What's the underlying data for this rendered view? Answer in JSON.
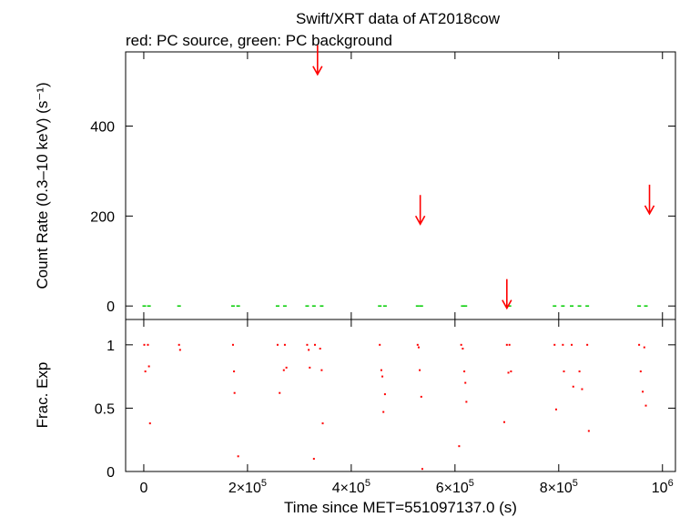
{
  "chart_data": [
    {
      "type": "scatter",
      "title": "Swift/XRT data of AT2018cow",
      "subtitle": "red: PC source, green: PC background",
      "ylabel": "Count Rate (0.3–10 keV) (s⁻¹)",
      "xlim": [
        -35000,
        1025000
      ],
      "ylim": [
        -30,
        565
      ],
      "yticks": [
        0,
        200,
        400
      ],
      "ytick_labels": [
        "0",
        "200",
        "400"
      ],
      "colors": {
        "source": "#ff0000",
        "background": "#00cc00"
      },
      "series": [
        {
          "name": "PC source",
          "kind": "upper-limits",
          "x": [
            335000,
            533000,
            700000,
            975000
          ],
          "y": [
            515,
            182,
            -5,
            205
          ]
        },
        {
          "name": "PC background",
          "x": [
            1000,
            10000,
            68000,
            172000,
            182000,
            258000,
            272000,
            315000,
            328000,
            343000,
            455000,
            465000,
            528000,
            535000,
            615000,
            620000,
            700000,
            705000,
            792000,
            808000,
            825000,
            840000,
            855000,
            955000,
            968000
          ],
          "y": [
            0,
            0,
            0,
            0,
            0,
            0,
            0,
            0,
            0,
            0,
            0,
            0,
            0,
            0,
            0,
            0,
            0,
            0,
            0,
            0,
            0,
            0,
            0,
            0,
            0
          ]
        }
      ]
    },
    {
      "type": "scatter",
      "xlabel": "Time since MET=551097137.0 (s)",
      "ylabel": "Frac. Exp",
      "xlim": [
        -35000,
        1025000
      ],
      "ylim": [
        0,
        1.2
      ],
      "xticks": [
        0,
        200000,
        400000,
        600000,
        800000,
        1000000
      ],
      "xtick_labels": [
        {
          "base": "0",
          "exp": ""
        },
        {
          "base": "2×10",
          "exp": "5"
        },
        {
          "base": "4×10",
          "exp": "5"
        },
        {
          "base": "6×10",
          "exp": "5"
        },
        {
          "base": "8×10",
          "exp": "5"
        },
        {
          "base": "10",
          "exp": "6"
        }
      ],
      "yticks": [
        0,
        0.5,
        1
      ],
      "ytick_labels": [
        "0",
        "0.5",
        "1"
      ],
      "series": [
        {
          "name": "PC source",
          "x": [
            1000,
            3000,
            8000,
            10000,
            12000,
            68000,
            70000,
            172000,
            174000,
            175000,
            182000,
            258000,
            262000,
            270000,
            272000,
            275000,
            315000,
            318000,
            320000,
            328000,
            330000,
            340000,
            343000,
            345000,
            455000,
            458000,
            460000,
            462000,
            465000,
            528000,
            530000,
            532000,
            535000,
            537000,
            608000,
            612000,
            615000,
            618000,
            620000,
            622000,
            695000,
            700000,
            703000,
            705000,
            708000,
            792000,
            795000,
            808000,
            810000,
            825000,
            828000,
            840000,
            845000,
            855000,
            858000,
            955000,
            958000,
            962000,
            965000,
            968000
          ],
          "y": [
            1.0,
            0.79,
            1.0,
            0.83,
            0.38,
            1.0,
            0.96,
            1.0,
            0.79,
            0.62,
            0.12,
            1.0,
            0.62,
            0.8,
            1.0,
            0.82,
            1.0,
            0.96,
            0.82,
            0.1,
            1.0,
            0.97,
            0.8,
            0.38,
            1.0,
            0.8,
            0.75,
            0.47,
            0.61,
            1.0,
            0.98,
            0.8,
            0.59,
            0.02,
            0.2,
            1.0,
            0.97,
            0.79,
            0.7,
            0.55,
            0.39,
            1.0,
            0.78,
            1.0,
            0.79,
            1.0,
            0.49,
            1.0,
            0.79,
            1.0,
            0.67,
            0.79,
            0.65,
            1.0,
            0.32,
            1.0,
            0.79,
            0.63,
            0.98,
            0.52
          ]
        }
      ]
    }
  ]
}
